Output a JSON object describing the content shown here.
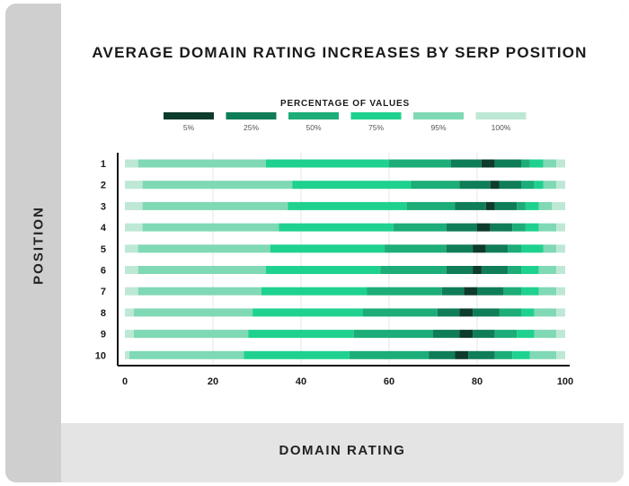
{
  "chart_data": {
    "type": "bar",
    "subtype": "stacked-horizontal-percentile",
    "title": "AVERAGE DOMAIN RATING INCREASES BY SERP POSITION",
    "xlabel": "DOMAIN RATING",
    "ylabel": "POSITION",
    "xlim": [
      0,
      100
    ],
    "x_ticks": [
      "0",
      "20",
      "40",
      "60",
      "80",
      "100"
    ],
    "grid": true,
    "legend_title": "PERCENTAGE OF VALUES",
    "legend_position": "top",
    "legend": [
      {
        "label": "5%",
        "color": "#0d3b2c"
      },
      {
        "label": "25%",
        "color": "#0f7d58"
      },
      {
        "label": "50%",
        "color": "#1cad78"
      },
      {
        "label": "75%",
        "color": "#1fd18e"
      },
      {
        "label": "95%",
        "color": "#7fd9b4"
      },
      {
        "label": "100%",
        "color": "#bde8d5"
      }
    ],
    "categories": [
      "1",
      "2",
      "3",
      "4",
      "5",
      "6",
      "7",
      "8",
      "9",
      "10"
    ],
    "band_colors": [
      "#bde8d5",
      "#7fd9b4",
      "#1fd18e",
      "#1cad78",
      "#0f7d58",
      "#0d3b2c",
      "#0f7d58",
      "#1cad78",
      "#1fd18e",
      "#7fd9b4",
      "#bde8d5"
    ],
    "rows": [
      {
        "position": "1",
        "bounds": [
          0,
          3,
          32,
          60,
          74,
          81,
          84,
          90,
          92,
          95,
          98,
          100
        ]
      },
      {
        "position": "2",
        "bounds": [
          0,
          4,
          38,
          65,
          76,
          83,
          85,
          90,
          93,
          95,
          98,
          100
        ]
      },
      {
        "position": "3",
        "bounds": [
          0,
          4,
          37,
          64,
          75,
          82,
          84,
          89,
          91,
          94,
          97,
          100
        ]
      },
      {
        "position": "4",
        "bounds": [
          0,
          4,
          35,
          61,
          73,
          80,
          83,
          88,
          91,
          94,
          98,
          100
        ]
      },
      {
        "position": "5",
        "bounds": [
          0,
          3,
          33,
          59,
          73,
          79,
          82,
          87,
          90,
          95,
          98,
          100
        ]
      },
      {
        "position": "6",
        "bounds": [
          0,
          3,
          32,
          58,
          73,
          79,
          81,
          87,
          90,
          94,
          98,
          100
        ]
      },
      {
        "position": "7",
        "bounds": [
          0,
          3,
          31,
          55,
          72,
          77,
          80,
          86,
          90,
          94,
          98,
          100
        ]
      },
      {
        "position": "8",
        "bounds": [
          0,
          2,
          29,
          54,
          71,
          76,
          79,
          85,
          90,
          93,
          98,
          100
        ]
      },
      {
        "position": "9",
        "bounds": [
          0,
          2,
          28,
          52,
          70,
          76,
          79,
          84,
          89,
          93,
          98,
          100
        ]
      },
      {
        "position": "10",
        "bounds": [
          0,
          1,
          27,
          51,
          69,
          75,
          78,
          84,
          88,
          92,
          98,
          100
        ]
      }
    ]
  }
}
